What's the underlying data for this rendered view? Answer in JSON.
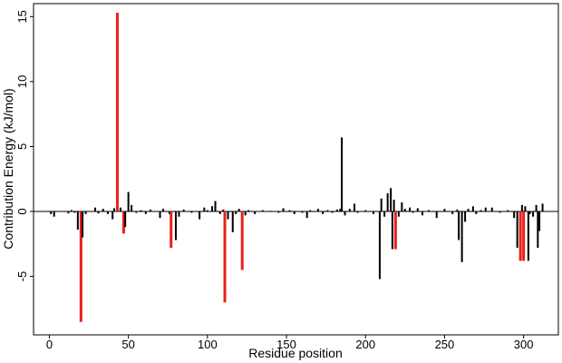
{
  "chart_data": {
    "type": "bar",
    "title": "",
    "xlabel": "Residue position",
    "ylabel": "Contribution Energy (kJ/mol)",
    "xlim": [
      -10,
      322
    ],
    "ylim": [
      -9.5,
      16
    ],
    "xticks": [
      0,
      50,
      100,
      150,
      200,
      250,
      300
    ],
    "yticks": [
      -5,
      0,
      5,
      10,
      15
    ],
    "zero_line": true,
    "grid": false,
    "legend": "none",
    "colors": {
      "default": "#000000",
      "highlight": "#e8201a"
    },
    "series": [
      {
        "values": [
          {
            "x": 1,
            "y": -0.2
          },
          {
            "x": 3,
            "y": -0.4
          },
          {
            "x": 12,
            "y": -0.15
          },
          {
            "x": 14,
            "y": 0.1
          },
          {
            "x": 16,
            "y": -0.1
          },
          {
            "x": 18,
            "y": -1.4
          },
          {
            "x": 20,
            "y": -8.5,
            "highlight": true
          },
          {
            "x": 21,
            "y": -2.0
          },
          {
            "x": 23,
            "y": -0.2
          },
          {
            "x": 29,
            "y": 0.3
          },
          {
            "x": 31,
            "y": -0.15
          },
          {
            "x": 34,
            "y": 0.2
          },
          {
            "x": 37,
            "y": -0.2
          },
          {
            "x": 40,
            "y": -0.6
          },
          {
            "x": 41,
            "y": 0.25
          },
          {
            "x": 43,
            "y": 15.3,
            "highlight": true
          },
          {
            "x": 45,
            "y": 0.3
          },
          {
            "x": 47,
            "y": -1.7,
            "highlight": true
          },
          {
            "x": 48,
            "y": -1.2
          },
          {
            "x": 50,
            "y": 1.5
          },
          {
            "x": 52,
            "y": 0.5
          },
          {
            "x": 55,
            "y": -0.1
          },
          {
            "x": 58,
            "y": 0.1
          },
          {
            "x": 61,
            "y": -0.2
          },
          {
            "x": 64,
            "y": 0.15
          },
          {
            "x": 70,
            "y": -0.5
          },
          {
            "x": 72,
            "y": 0.2
          },
          {
            "x": 76,
            "y": -0.2
          },
          {
            "x": 77,
            "y": -2.8,
            "highlight": true
          },
          {
            "x": 80,
            "y": -2.2
          },
          {
            "x": 82,
            "y": -0.4
          },
          {
            "x": 85,
            "y": 0.15
          },
          {
            "x": 90,
            "y": -0.1
          },
          {
            "x": 95,
            "y": -0.6
          },
          {
            "x": 98,
            "y": 0.3
          },
          {
            "x": 100,
            "y": 0.1
          },
          {
            "x": 103,
            "y": 0.4
          },
          {
            "x": 105,
            "y": 0.8
          },
          {
            "x": 108,
            "y": -0.2
          },
          {
            "x": 110,
            "y": 0.15
          },
          {
            "x": 111,
            "y": -7.0,
            "highlight": true
          },
          {
            "x": 113,
            "y": -0.6
          },
          {
            "x": 116,
            "y": -1.6
          },
          {
            "x": 118,
            "y": -0.2
          },
          {
            "x": 120,
            "y": 0.2
          },
          {
            "x": 122,
            "y": -4.5,
            "highlight": true
          },
          {
            "x": 124,
            "y": -0.3
          },
          {
            "x": 126,
            "y": 0.1
          },
          {
            "x": 130,
            "y": -0.2
          },
          {
            "x": 135,
            "y": 0.1
          },
          {
            "x": 140,
            "y": 0.05
          },
          {
            "x": 145,
            "y": -0.1
          },
          {
            "x": 148,
            "y": 0.25
          },
          {
            "x": 152,
            "y": 0.1
          },
          {
            "x": 155,
            "y": -0.2
          },
          {
            "x": 160,
            "y": -0.1
          },
          {
            "x": 163,
            "y": -0.5
          },
          {
            "x": 165,
            "y": 0.1
          },
          {
            "x": 170,
            "y": 0.2
          },
          {
            "x": 173,
            "y": -0.2
          },
          {
            "x": 176,
            "y": 0.1
          },
          {
            "x": 179,
            "y": -0.1
          },
          {
            "x": 182,
            "y": 0.15
          },
          {
            "x": 184,
            "y": 0.2
          },
          {
            "x": 185,
            "y": 5.7
          },
          {
            "x": 187,
            "y": -0.3
          },
          {
            "x": 190,
            "y": 0.2
          },
          {
            "x": 193,
            "y": 0.6
          },
          {
            "x": 195,
            "y": -0.1
          },
          {
            "x": 200,
            "y": 0.1
          },
          {
            "x": 205,
            "y": -0.2
          },
          {
            "x": 209,
            "y": -5.2
          },
          {
            "x": 210,
            "y": 1.0
          },
          {
            "x": 212,
            "y": -0.4
          },
          {
            "x": 214,
            "y": 1.4
          },
          {
            "x": 216,
            "y": 1.8
          },
          {
            "x": 217,
            "y": -2.9
          },
          {
            "x": 218,
            "y": 0.9
          },
          {
            "x": 219,
            "y": -2.9,
            "highlight": true
          },
          {
            "x": 221,
            "y": -0.4
          },
          {
            "x": 223,
            "y": 0.7
          },
          {
            "x": 225,
            "y": 0.2
          },
          {
            "x": 228,
            "y": 0.3
          },
          {
            "x": 230,
            "y": -0.1
          },
          {
            "x": 233,
            "y": 0.25
          },
          {
            "x": 236,
            "y": -0.3
          },
          {
            "x": 240,
            "y": 0.1
          },
          {
            "x": 245,
            "y": -0.5
          },
          {
            "x": 250,
            "y": 0.2
          },
          {
            "x": 255,
            "y": -0.2
          },
          {
            "x": 258,
            "y": 0.15
          },
          {
            "x": 259,
            "y": -2.2
          },
          {
            "x": 261,
            "y": -3.9
          },
          {
            "x": 263,
            "y": -0.8
          },
          {
            "x": 265,
            "y": 0.2
          },
          {
            "x": 268,
            "y": 0.4
          },
          {
            "x": 270,
            "y": -0.2
          },
          {
            "x": 273,
            "y": 0.1
          },
          {
            "x": 276,
            "y": 0.3
          },
          {
            "x": 280,
            "y": 0.3
          },
          {
            "x": 285,
            "y": -0.1
          },
          {
            "x": 290,
            "y": 0.1
          },
          {
            "x": 294,
            "y": -0.5
          },
          {
            "x": 296,
            "y": -2.8
          },
          {
            "x": 298,
            "y": -3.8,
            "highlight": true
          },
          {
            "x": 299,
            "y": 0.5
          },
          {
            "x": 300,
            "y": -3.8,
            "highlight": true
          },
          {
            "x": 301,
            "y": 0.4
          },
          {
            "x": 303,
            "y": -3.8
          },
          {
            "x": 304,
            "y": -0.2
          },
          {
            "x": 306,
            "y": -0.4
          },
          {
            "x": 308,
            "y": 0.5
          },
          {
            "x": 309,
            "y": -2.8
          },
          {
            "x": 310,
            "y": -1.5
          },
          {
            "x": 312,
            "y": 0.6
          }
        ]
      }
    ]
  }
}
